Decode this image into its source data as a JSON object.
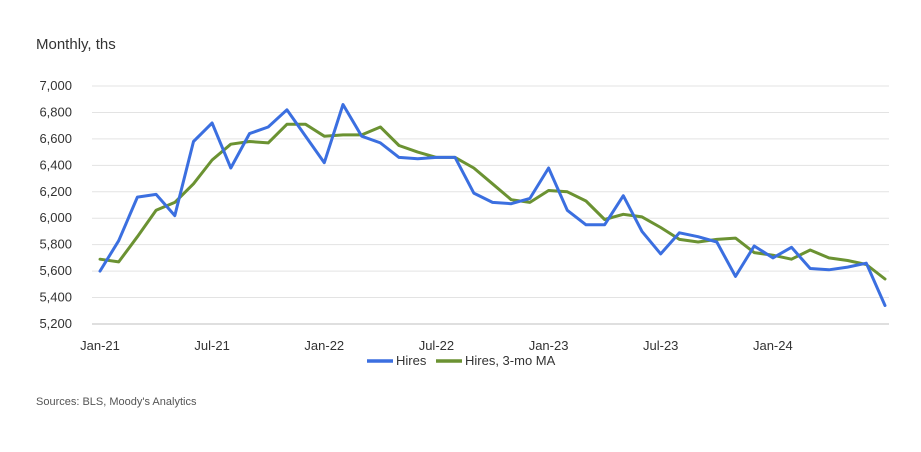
{
  "chart_data": {
    "type": "line",
    "unit_label": "Monthly,  ths",
    "source": "Sources: BLS, Moody's Analytics",
    "x": [
      "Jan-21",
      "Feb-21",
      "Mar-21",
      "Apr-21",
      "May-21",
      "Jun-21",
      "Jul-21",
      "Aug-21",
      "Sep-21",
      "Oct-21",
      "Nov-21",
      "Dec-21",
      "Jan-22",
      "Feb-22",
      "Mar-22",
      "Apr-22",
      "May-22",
      "Jun-22",
      "Jul-22",
      "Aug-22",
      "Sep-22",
      "Oct-22",
      "Nov-22",
      "Dec-22",
      "Jan-23",
      "Feb-23",
      "Mar-23",
      "Apr-23",
      "May-23",
      "Jun-23",
      "Jul-23",
      "Aug-23",
      "Sep-23",
      "Oct-23",
      "Nov-23",
      "Dec-23",
      "Jan-24",
      "Feb-24",
      "Mar-24",
      "Apr-24",
      "May-24",
      "Jun-24",
      "Jul-24"
    ],
    "x_tick_labels": [
      "Jan-21",
      "Jul-21",
      "Jan-22",
      "Jul-22",
      "Jan-23",
      "Jul-23",
      "Jan-24"
    ],
    "series": [
      {
        "name": "Hires",
        "color": "#3b6fe0",
        "values": [
          5600,
          5830,
          6160,
          6180,
          6020,
          6580,
          6720,
          6380,
          6640,
          6690,
          6820,
          6620,
          6420,
          6860,
          6620,
          6570,
          6460,
          6450,
          6460,
          6460,
          6190,
          6120,
          6110,
          6150,
          6380,
          6060,
          5950,
          5950,
          6170,
          5900,
          5730,
          5890,
          5860,
          5820,
          5560,
          5790,
          5700,
          5780,
          5620,
          5610,
          5630,
          5660,
          5340
        ]
      },
      {
        "name": "Hires, 3-mo MA",
        "color": "#6b9232",
        "values": [
          5690,
          5670,
          5860,
          6060,
          6120,
          6260,
          6440,
          6560,
          6580,
          6570,
          6710,
          6710,
          6620,
          6630,
          6630,
          6690,
          6550,
          6500,
          6460,
          6460,
          6380,
          6260,
          6140,
          6120,
          6210,
          6200,
          6130,
          5990,
          6030,
          6010,
          5930,
          5840,
          5820,
          5840,
          5850,
          5740,
          5720,
          5690,
          5760,
          5700,
          5680,
          5650,
          5540
        ]
      }
    ],
    "ylim": [
      5200,
      7000
    ],
    "y_ticks": [
      5200,
      5400,
      5600,
      5800,
      6000,
      6200,
      6400,
      6600,
      6800,
      7000
    ],
    "grid": true,
    "legend_position": "bottom"
  }
}
